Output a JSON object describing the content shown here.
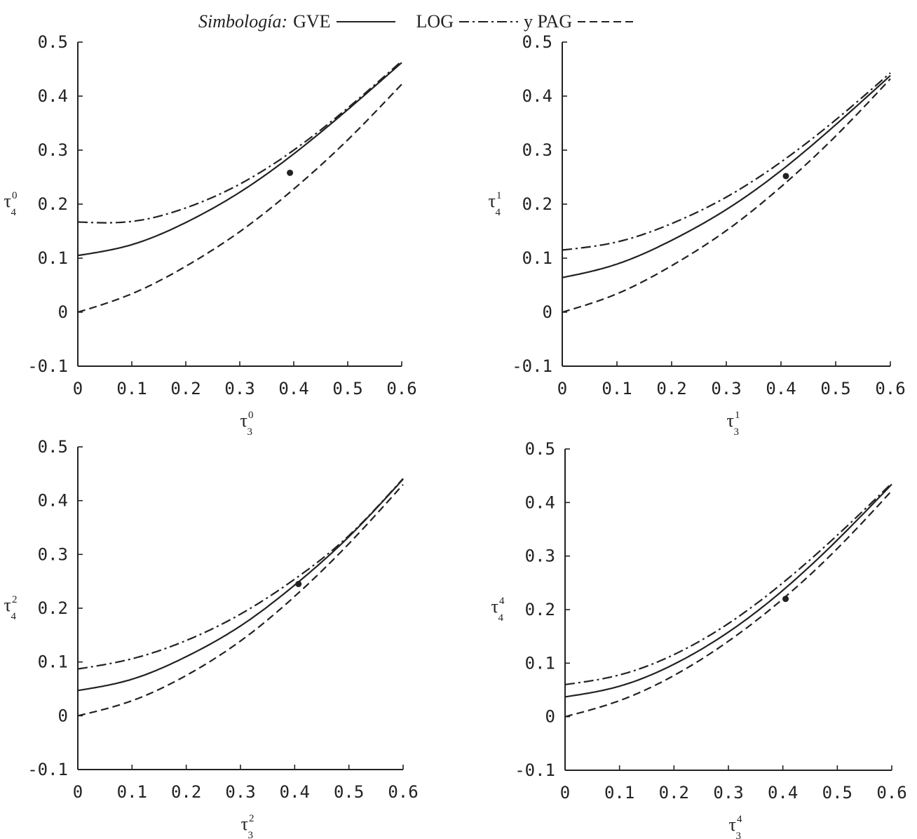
{
  "legend": {
    "lead": "Simbología:",
    "items": [
      {
        "label": "GVE",
        "dash": "solid"
      },
      {
        "label": "LOG",
        "dash": "dashdot"
      },
      {
        "label": "y PAG",
        "dash": "dashed"
      }
    ]
  },
  "colors": {
    "ink": "#222222",
    "background": "#ffffff"
  },
  "chart_data": [
    {
      "type": "line",
      "xlabel": {
        "base": "τ",
        "sup": "0",
        "sub": "3"
      },
      "ylabel": {
        "base": "τ",
        "sup": "0",
        "sub": "4"
      },
      "xlim": [
        0,
        0.6
      ],
      "ylim": [
        -0.1,
        0.5
      ],
      "xticks": [
        "0",
        "0.1",
        "0.2",
        "0.3",
        "0.4",
        "0.5",
        "0.6"
      ],
      "yticks": [
        "-0.1",
        "0",
        "0.1",
        "0.2",
        "0.3",
        "0.4",
        "0.5"
      ],
      "x": [
        0,
        0.1,
        0.2,
        0.3,
        0.4,
        0.5,
        0.6
      ],
      "series": [
        {
          "name": "GVE",
          "dash": "solid",
          "values": [
            0.105,
            0.125,
            0.166,
            0.222,
            0.293,
            0.375,
            0.462
          ]
        },
        {
          "name": "LOG",
          "dash": "dashdot",
          "values": [
            0.167,
            0.168,
            0.193,
            0.237,
            0.3,
            0.378,
            0.465
          ]
        },
        {
          "name": "PAG",
          "dash": "dashed",
          "values": [
            0.0,
            0.034,
            0.085,
            0.149,
            0.228,
            0.319,
            0.422
          ]
        }
      ],
      "point": {
        "x": 0.393,
        "y": 0.258
      }
    },
    {
      "type": "line",
      "xlabel": {
        "base": "τ",
        "sup": "1",
        "sub": "3"
      },
      "ylabel": {
        "base": "τ",
        "sup": "1",
        "sub": "4"
      },
      "xlim": [
        0,
        0.6
      ],
      "ylim": [
        -0.1,
        0.5
      ],
      "xticks": [
        "0",
        "0.1",
        "0.2",
        "0.3",
        "0.4",
        "0.5",
        "0.6"
      ],
      "yticks": [
        "-0.1",
        "0",
        "0.1",
        "0.2",
        "0.3",
        "0.4",
        "0.5"
      ],
      "x": [
        0,
        0.1,
        0.2,
        0.3,
        0.4,
        0.5,
        0.6
      ],
      "series": [
        {
          "name": "GVE",
          "dash": "solid",
          "values": [
            0.064,
            0.089,
            0.133,
            0.19,
            0.262,
            0.347,
            0.438
          ]
        },
        {
          "name": "LOG",
          "dash": "dashdot",
          "values": [
            0.115,
            0.13,
            0.164,
            0.213,
            0.278,
            0.356,
            0.443
          ]
        },
        {
          "name": "PAG",
          "dash": "dashed",
          "values": [
            0.0,
            0.034,
            0.086,
            0.151,
            0.232,
            0.326,
            0.432
          ]
        }
      ],
      "point": {
        "x": 0.409,
        "y": 0.252
      }
    },
    {
      "type": "line",
      "xlabel": {
        "base": "τ",
        "sup": "2",
        "sub": "3"
      },
      "ylabel": {
        "base": "τ",
        "sup": "2",
        "sub": "4"
      },
      "xlim": [
        0,
        0.6
      ],
      "ylim": [
        -0.1,
        0.5
      ],
      "xticks": [
        "0",
        "0.1",
        "0.2",
        "0.3",
        "0.4",
        "0.5",
        "0.6"
      ],
      "yticks": [
        "-0.1",
        "0",
        "0.1",
        "0.2",
        "0.3",
        "0.4",
        "0.5"
      ],
      "x": [
        0,
        0.1,
        0.2,
        0.3,
        0.4,
        0.5,
        0.6
      ],
      "series": [
        {
          "name": "GVE",
          "dash": "solid",
          "values": [
            0.047,
            0.068,
            0.11,
            0.167,
            0.243,
            0.333,
            0.44
          ]
        },
        {
          "name": "LOG",
          "dash": "dashdot",
          "values": [
            0.087,
            0.106,
            0.14,
            0.189,
            0.254,
            0.335,
            0.441
          ]
        },
        {
          "name": "PAG",
          "dash": "dashed",
          "values": [
            0.0,
            0.028,
            0.075,
            0.139,
            0.222,
            0.32,
            0.43
          ]
        }
      ],
      "point": {
        "x": 0.407,
        "y": 0.245
      }
    },
    {
      "type": "line",
      "xlabel": {
        "base": "τ",
        "sup": "4",
        "sub": "3"
      },
      "ylabel": {
        "base": "τ",
        "sup": "4",
        "sub": "4"
      },
      "xlim": [
        0,
        0.6
      ],
      "ylim": [
        -0.1,
        0.5
      ],
      "xticks": [
        "0",
        "0.1",
        "0.2",
        "0.3",
        "0.4",
        "0.5",
        "0.6"
      ],
      "yticks": [
        "-0.1",
        "0",
        "0.1",
        "0.2",
        "0.3",
        "0.4",
        "0.5"
      ],
      "x": [
        0,
        0.1,
        0.2,
        0.3,
        0.4,
        0.5,
        0.6
      ],
      "series": [
        {
          "name": "GVE",
          "dash": "solid",
          "values": [
            0.037,
            0.057,
            0.098,
            0.158,
            0.236,
            0.33,
            0.434
          ]
        },
        {
          "name": "LOG",
          "dash": "dashdot",
          "values": [
            0.06,
            0.078,
            0.116,
            0.174,
            0.25,
            0.339,
            0.436
          ]
        },
        {
          "name": "PAG",
          "dash": "dashed",
          "values": [
            0.0,
            0.03,
            0.077,
            0.141,
            0.22,
            0.314,
            0.422
          ]
        }
      ],
      "point": {
        "x": 0.405,
        "y": 0.22
      }
    }
  ]
}
